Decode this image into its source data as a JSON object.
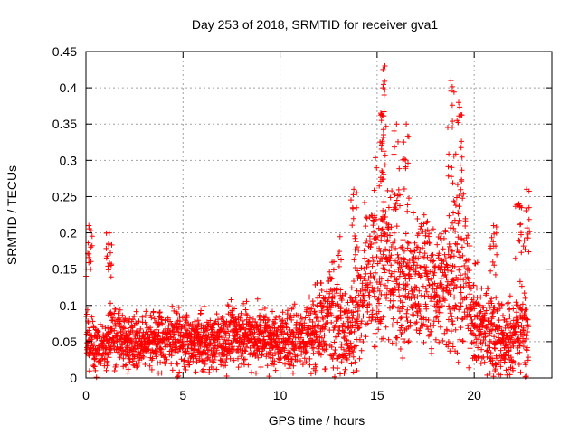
{
  "chart_data": {
    "type": "scatter",
    "title": "Day 253 of 2018, SRMTID for receiver gva1",
    "xlabel": "GPS time / hours",
    "ylabel": "SRMTID / TECUs",
    "xlim": [
      0,
      24
    ],
    "ylim": [
      0,
      0.45
    ],
    "xticks": [
      0,
      5,
      10,
      15,
      20
    ],
    "xtick_labels": [
      "0",
      "5",
      "10",
      "15",
      "20"
    ],
    "yticks": [
      0,
      0.05,
      0.1,
      0.15,
      0.2,
      0.25,
      0.3,
      0.35,
      0.4,
      0.45
    ],
    "ytick_labels": [
      "0",
      "0.05",
      "0.1",
      "0.15",
      "0.2",
      "0.25",
      "0.3",
      "0.35",
      "0.4",
      "0.45"
    ],
    "grid": true,
    "marker": "plus",
    "series_color": "#ff0000",
    "profile": {
      "description_hours": [
        0,
        0.5,
        1,
        1.5,
        2,
        3,
        4,
        5,
        6,
        7,
        8,
        9,
        10,
        11,
        12,
        12.5,
        13,
        13.5,
        14,
        14.5,
        15,
        15.5,
        16,
        16.5,
        17,
        17.5,
        18,
        18.5,
        19,
        19.5,
        20,
        20.5,
        21,
        21.5,
        22,
        22.5,
        22.8
      ],
      "typical_values": [
        0.05,
        0.04,
        0.05,
        0.06,
        0.05,
        0.05,
        0.055,
        0.05,
        0.05,
        0.055,
        0.06,
        0.06,
        0.05,
        0.055,
        0.07,
        0.09,
        0.1,
        0.06,
        0.09,
        0.13,
        0.17,
        0.16,
        0.14,
        0.12,
        0.13,
        0.14,
        0.12,
        0.13,
        0.16,
        0.14,
        0.08,
        0.07,
        0.06,
        0.05,
        0.06,
        0.07,
        0.05
      ],
      "spread": [
        0.035,
        0.03,
        0.03,
        0.035,
        0.03,
        0.03,
        0.035,
        0.035,
        0.03,
        0.035,
        0.035,
        0.035,
        0.03,
        0.035,
        0.045,
        0.06,
        0.07,
        0.05,
        0.07,
        0.08,
        0.11,
        0.1,
        0.08,
        0.07,
        0.07,
        0.08,
        0.07,
        0.08,
        0.1,
        0.09,
        0.05,
        0.05,
        0.05,
        0.04,
        0.05,
        0.05,
        0.04
      ]
    },
    "peaks": [
      {
        "x": 0.15,
        "y": 0.21
      },
      {
        "x": 1.2,
        "y": 0.2
      },
      {
        "x": 13.8,
        "y": 0.26
      },
      {
        "x": 15.4,
        "y": 0.43
      },
      {
        "x": 15.3,
        "y": 0.4
      },
      {
        "x": 16.0,
        "y": 0.35
      },
      {
        "x": 16.5,
        "y": 0.35
      },
      {
        "x": 18.8,
        "y": 0.41
      },
      {
        "x": 19.2,
        "y": 0.38
      },
      {
        "x": 21.0,
        "y": 0.21
      },
      {
        "x": 22.3,
        "y": 0.24
      },
      {
        "x": 22.7,
        "y": 0.26
      }
    ]
  }
}
